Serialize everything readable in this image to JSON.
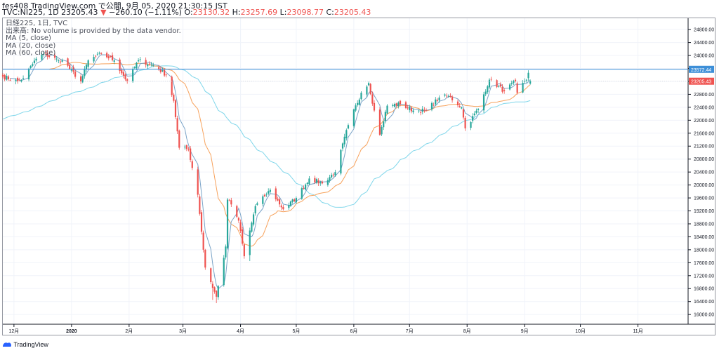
{
  "header": {
    "line1": "fes408 TradingView.com で公開, 9月 05, 2020 21:30:15 JST",
    "symbol": "TVC:NI225, 1D",
    "last": "23205.43",
    "arrow": "▼",
    "change": "−260.10 (−1.11%)",
    "o_label": "O:",
    "o": "23130.32",
    "h_label": "H:",
    "h": "23257.69",
    "l_label": "L:",
    "l": "23098.77",
    "c_label": "C:",
    "c": "23205.43"
  },
  "legend": {
    "title": "日経225, 1日, TVC",
    "volume_note": "出来高: No volume is provided by the data vendor.",
    "ma5": "MA (5, close)",
    "ma20": "MA (20, close)",
    "ma60": "MA (60, close)"
  },
  "footer": {
    "brand": "TradingView"
  },
  "colors": {
    "up": "#26a69a",
    "down": "#ef5350",
    "ma5": "#7aa3c7",
    "ma20": "#f7a25c",
    "ma60": "#7fd6ea",
    "hline": "#3d8fd8",
    "grid": "#f0f3fa",
    "axis": "#131722"
  },
  "chart_data": {
    "type": "candlestick",
    "y_axis": {
      "ylim": [
        15700,
        25150
      ],
      "ticks": [
        "16000.00",
        "16400.00",
        "16800.00",
        "17200.00",
        "17600.00",
        "18000.00",
        "18400.00",
        "18800.00",
        "19200.00",
        "19600.00",
        "20000.00",
        "20400.00",
        "20800.00",
        "21200.00",
        "21600.00",
        "22000.00",
        "22400.00",
        "22800.00",
        "23200.00",
        "23600.00",
        "24000.00",
        "24400.00",
        "24800.00"
      ]
    },
    "x_axis": {
      "start": "2019-11-25",
      "end": "2020-11-28",
      "labels": [
        {
          "label": "12月",
          "date": "2019-12-01",
          "bold": false
        },
        {
          "label": "2020",
          "date": "2020-01-01",
          "bold": true
        },
        {
          "label": "2月",
          "date": "2020-02-01",
          "bold": false
        },
        {
          "label": "3月",
          "date": "2020-03-01",
          "bold": false
        },
        {
          "label": "4月",
          "date": "2020-04-01",
          "bold": false
        },
        {
          "label": "5月",
          "date": "2020-05-01",
          "bold": false
        },
        {
          "label": "6月",
          "date": "2020-06-01",
          "bold": false
        },
        {
          "label": "7月",
          "date": "2020-07-01",
          "bold": false
        },
        {
          "label": "8月",
          "date": "2020-08-01",
          "bold": false
        },
        {
          "label": "9月",
          "date": "2020-09-01",
          "bold": false
        },
        {
          "label": "10月",
          "date": "2020-10-01",
          "bold": false
        },
        {
          "label": "11月",
          "date": "2020-11-01",
          "bold": false
        }
      ]
    },
    "price_levels": [
      {
        "label": "23572.44",
        "value": 23572.44,
        "kind": "line"
      },
      {
        "label": "23205.43",
        "value": 23205.43,
        "kind": "last"
      }
    ],
    "anchors": [
      {
        "date": "2019-11-25",
        "close": 23350
      },
      {
        "date": "2019-12-03",
        "close": 23200
      },
      {
        "date": "2019-12-06",
        "close": 23300
      },
      {
        "date": "2019-12-13",
        "close": 23900
      },
      {
        "date": "2019-12-17",
        "close": 24050
      },
      {
        "date": "2019-12-25",
        "close": 23850
      },
      {
        "date": "2019-12-27",
        "close": 23850
      },
      {
        "date": "2020-01-06",
        "close": 23200
      },
      {
        "date": "2020-01-10",
        "close": 23850
      },
      {
        "date": "2020-01-17",
        "close": 24050
      },
      {
        "date": "2020-01-24",
        "close": 23850
      },
      {
        "date": "2020-01-31",
        "close": 23200
      },
      {
        "date": "2020-02-06",
        "close": 23850
      },
      {
        "date": "2020-02-14",
        "close": 23700
      },
      {
        "date": "2020-02-21",
        "close": 23400
      },
      {
        "date": "2020-02-25",
        "close": 22600
      },
      {
        "date": "2020-02-28",
        "close": 21150
      },
      {
        "date": "2020-03-04",
        "close": 21100
      },
      {
        "date": "2020-03-09",
        "close": 19700
      },
      {
        "date": "2020-03-13",
        "close": 17450
      },
      {
        "date": "2020-03-16",
        "close": 17000
      },
      {
        "date": "2020-03-19",
        "close": 16550
      },
      {
        "date": "2020-03-24",
        "close": 18100
      },
      {
        "date": "2020-03-25",
        "close": 19550
      },
      {
        "date": "2020-03-27",
        "close": 19400
      },
      {
        "date": "2020-03-31",
        "close": 18900
      },
      {
        "date": "2020-04-03",
        "close": 17800
      },
      {
        "date": "2020-04-09",
        "close": 19350
      },
      {
        "date": "2020-04-14",
        "close": 19650
      },
      {
        "date": "2020-04-17",
        "close": 19850
      },
      {
        "date": "2020-04-24",
        "close": 19250
      },
      {
        "date": "2020-05-01",
        "close": 19600
      },
      {
        "date": "2020-05-08",
        "close": 20200
      },
      {
        "date": "2020-05-15",
        "close": 20050
      },
      {
        "date": "2020-05-22",
        "close": 20400
      },
      {
        "date": "2020-05-29",
        "close": 21850
      },
      {
        "date": "2020-06-05",
        "close": 22850
      },
      {
        "date": "2020-06-09",
        "close": 23150
      },
      {
        "date": "2020-06-12",
        "close": 22300
      },
      {
        "date": "2020-06-15",
        "close": 21550
      },
      {
        "date": "2020-06-19",
        "close": 22450
      },
      {
        "date": "2020-06-26",
        "close": 22500
      },
      {
        "date": "2020-07-03",
        "close": 22300
      },
      {
        "date": "2020-07-10",
        "close": 22300
      },
      {
        "date": "2020-07-17",
        "close": 22700
      },
      {
        "date": "2020-07-22",
        "close": 22750
      },
      {
        "date": "2020-07-29",
        "close": 22400
      },
      {
        "date": "2020-07-31",
        "close": 21750
      },
      {
        "date": "2020-08-07",
        "close": 22350
      },
      {
        "date": "2020-08-13",
        "close": 23250
      },
      {
        "date": "2020-08-21",
        "close": 22900
      },
      {
        "date": "2020-08-27",
        "close": 23200
      },
      {
        "date": "2020-08-28",
        "close": 22850
      },
      {
        "date": "2020-09-02",
        "close": 23250
      },
      {
        "date": "2020-09-03",
        "close": 23465
      },
      {
        "date": "2020-09-04",
        "close": 23205.43
      }
    ],
    "lows": [
      {
        "date": "2020-03-17",
        "low": 16450
      },
      {
        "date": "2020-03-19",
        "low": 16350
      },
      {
        "date": "2020-04-06",
        "low": 17650
      }
    ]
  }
}
